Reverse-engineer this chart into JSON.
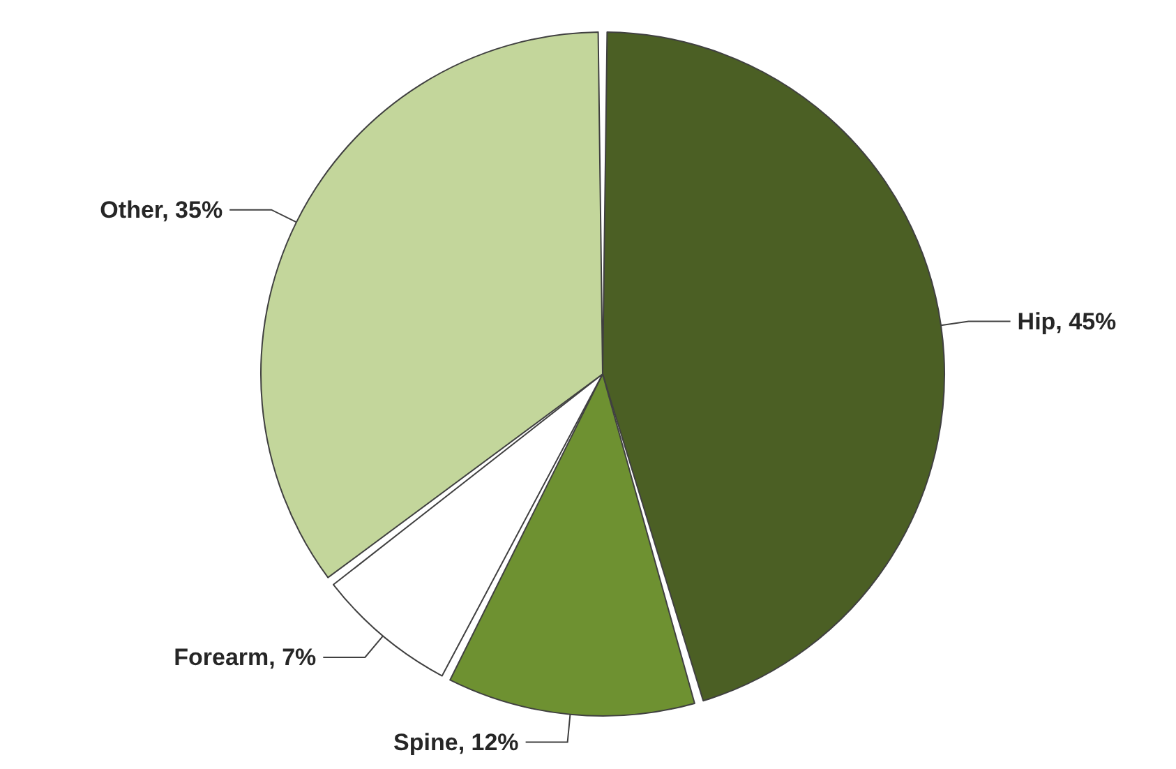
{
  "chart_data": {
    "type": "pie",
    "categories": [
      "Hip",
      "Spine",
      "Forearm",
      "Other"
    ],
    "values": [
      45,
      12,
      7,
      35
    ],
    "colors": [
      "#4b5f24",
      "#6e9131",
      "#ffffff",
      "#c3d69b"
    ],
    "value_labels": [
      "45%",
      "12%",
      "7%",
      "35%"
    ]
  }
}
